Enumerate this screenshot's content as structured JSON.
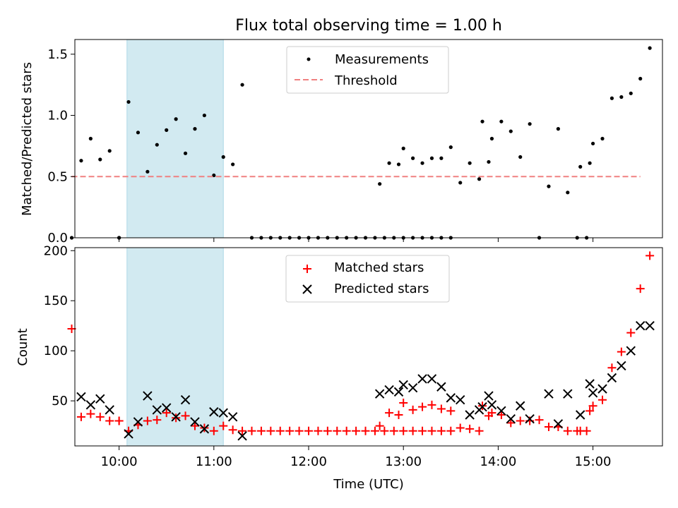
{
  "figure": {
    "title": "Flux total observing time = 1.00 h"
  },
  "chart_data": [
    {
      "type": "scatter",
      "panel": "top",
      "ylabel": "Matched/Predicted stars",
      "xlabel": "",
      "xlim": [
        "09:32",
        "15:44"
      ],
      "ylim": [
        0,
        1.62
      ],
      "yticks": [
        "0.0",
        "0.5",
        "1.0",
        "1.5"
      ],
      "highlight_span": [
        "10:05",
        "11:06"
      ],
      "highlight_color": "#add8e6",
      "legend_position": "top-center",
      "series": [
        {
          "name": "Measurements",
          "kind": "points",
          "color": "#000000",
          "points": [
            [
              "09:30",
              0.0
            ],
            [
              "09:36",
              0.63
            ],
            [
              "09:42",
              0.81
            ],
            [
              "09:48",
              0.64
            ],
            [
              "09:54",
              0.71
            ],
            [
              "10:00",
              0.0
            ],
            [
              "10:00",
              0.0
            ],
            [
              "10:06",
              1.11
            ],
            [
              "10:12",
              0.86
            ],
            [
              "10:18",
              0.54
            ],
            [
              "10:24",
              0.76
            ],
            [
              "10:30",
              0.88
            ],
            [
              "10:36",
              0.97
            ],
            [
              "10:42",
              0.69
            ],
            [
              "10:48",
              0.89
            ],
            [
              "10:54",
              1.0
            ],
            [
              "11:00",
              0.51
            ],
            [
              "11:06",
              0.66
            ],
            [
              "11:12",
              0.6
            ],
            [
              "11:18",
              1.25
            ],
            [
              "11:24",
              0.0
            ],
            [
              "11:30",
              0.0
            ],
            [
              "11:36",
              0.0
            ],
            [
              "11:42",
              0.0
            ],
            [
              "11:48",
              0.0
            ],
            [
              "11:54",
              0.0
            ],
            [
              "12:00",
              0.0
            ],
            [
              "12:06",
              0.0
            ],
            [
              "12:12",
              0.0
            ],
            [
              "12:18",
              0.0
            ],
            [
              "12:24",
              0.0
            ],
            [
              "12:30",
              0.0
            ],
            [
              "12:36",
              0.0
            ],
            [
              "12:42",
              0.0
            ],
            [
              "12:48",
              0.0
            ],
            [
              "12:54",
              0.0
            ],
            [
              "13:00",
              0.0
            ],
            [
              "13:06",
              0.0
            ],
            [
              "13:12",
              0.0
            ],
            [
              "13:18",
              0.0
            ],
            [
              "13:24",
              0.0
            ],
            [
              "13:30",
              0.0
            ],
            [
              "12:45",
              0.44
            ],
            [
              "12:51",
              0.61
            ],
            [
              "12:57",
              0.6
            ],
            [
              "13:00",
              0.73
            ],
            [
              "13:06",
              0.65
            ],
            [
              "13:12",
              0.61
            ],
            [
              "13:18",
              0.65
            ],
            [
              "13:24",
              0.65
            ],
            [
              "13:30",
              0.74
            ],
            [
              "13:36",
              0.45
            ],
            [
              "13:42",
              0.61
            ],
            [
              "13:48",
              0.48
            ],
            [
              "13:54",
              0.62
            ],
            [
              "13:50",
              0.95
            ],
            [
              "13:56",
              0.81
            ],
            [
              "14:02",
              0.95
            ],
            [
              "14:08",
              0.87
            ],
            [
              "14:14",
              0.66
            ],
            [
              "14:20",
              0.93
            ],
            [
              "14:26",
              0.0
            ],
            [
              "14:32",
              0.42
            ],
            [
              "14:38",
              0.89
            ],
            [
              "14:44",
              0.37
            ],
            [
              "14:50",
              0.0
            ],
            [
              "14:56",
              0.0
            ],
            [
              "14:52",
              0.58
            ],
            [
              "14:58",
              0.61
            ],
            [
              "15:00",
              0.77
            ],
            [
              "15:06",
              0.81
            ],
            [
              "15:12",
              1.14
            ],
            [
              "15:18",
              1.15
            ],
            [
              "15:24",
              1.18
            ],
            [
              "15:30",
              1.3
            ],
            [
              "15:36",
              1.55
            ]
          ]
        },
        {
          "name": "Threshold",
          "kind": "dashed-line",
          "color": "#f08080",
          "x": [
            "09:30",
            "15:30"
          ],
          "y": [
            0.5,
            0.5
          ]
        }
      ]
    },
    {
      "type": "scatter",
      "panel": "bottom",
      "ylabel": "Count",
      "xlabel": "Time (UTC)",
      "xlim": [
        "09:32",
        "15:44"
      ],
      "ylim": [
        5,
        203
      ],
      "yticks": [
        "50",
        "100",
        "150",
        "200"
      ],
      "xticks": [
        "10:00",
        "11:00",
        "12:00",
        "13:00",
        "14:00",
        "15:00"
      ],
      "highlight_span": [
        "10:05",
        "11:06"
      ],
      "highlight_color": "#add8e6",
      "legend_position": "top-center",
      "series": [
        {
          "name": "Matched stars",
          "marker": "plus",
          "color": "#ff0000",
          "points": [
            [
              "09:30",
              122
            ],
            [
              "09:36",
              34
            ],
            [
              "09:42",
              37
            ],
            [
              "09:48",
              34
            ],
            [
              "09:54",
              30
            ],
            [
              "10:00",
              30
            ],
            [
              "10:00",
              30
            ],
            [
              "10:06",
              20
            ],
            [
              "10:12",
              26
            ],
            [
              "10:18",
              30
            ],
            [
              "10:24",
              31
            ],
            [
              "10:30",
              38
            ],
            [
              "10:36",
              33
            ],
            [
              "10:42",
              35
            ],
            [
              "10:48",
              25
            ],
            [
              "10:54",
              23
            ],
            [
              "11:00",
              20
            ],
            [
              "11:06",
              25
            ],
            [
              "11:12",
              21
            ],
            [
              "11:18",
              20
            ],
            [
              "11:24",
              20
            ],
            [
              "11:30",
              20
            ],
            [
              "11:36",
              20
            ],
            [
              "11:42",
              20
            ],
            [
              "11:48",
              20
            ],
            [
              "11:54",
              20
            ],
            [
              "12:00",
              20
            ],
            [
              "12:06",
              20
            ],
            [
              "12:12",
              20
            ],
            [
              "12:18",
              20
            ],
            [
              "12:24",
              20
            ],
            [
              "12:30",
              20
            ],
            [
              "12:36",
              20
            ],
            [
              "12:42",
              20
            ],
            [
              "12:48",
              20
            ],
            [
              "12:54",
              20
            ],
            [
              "13:00",
              20
            ],
            [
              "13:06",
              20
            ],
            [
              "13:12",
              20
            ],
            [
              "13:18",
              20
            ],
            [
              "13:24",
              20
            ],
            [
              "13:30",
              20
            ],
            [
              "12:45",
              25
            ],
            [
              "12:51",
              38
            ],
            [
              "12:57",
              36
            ],
            [
              "13:00",
              48
            ],
            [
              "13:06",
              41
            ],
            [
              "13:12",
              44
            ],
            [
              "13:18",
              46
            ],
            [
              "13:24",
              42
            ],
            [
              "13:30",
              40
            ],
            [
              "13:36",
              23
            ],
            [
              "13:42",
              22
            ],
            [
              "13:48",
              20
            ],
            [
              "13:54",
              35
            ],
            [
              "13:50",
              45
            ],
            [
              "13:56",
              38
            ],
            [
              "14:02",
              36
            ],
            [
              "14:08",
              28
            ],
            [
              "14:14",
              30
            ],
            [
              "14:20",
              30
            ],
            [
              "14:26",
              31
            ],
            [
              "14:32",
              24
            ],
            [
              "14:38",
              24
            ],
            [
              "14:44",
              20
            ],
            [
              "14:50",
              20
            ],
            [
              "14:56",
              20
            ],
            [
              "14:52",
              20
            ],
            [
              "14:58",
              40
            ],
            [
              "15:00",
              45
            ],
            [
              "15:06",
              51
            ],
            [
              "15:12",
              83
            ],
            [
              "15:18",
              99
            ],
            [
              "15:24",
              118
            ],
            [
              "15:30",
              162
            ],
            [
              "15:36",
              195
            ]
          ]
        },
        {
          "name": "Predicted stars",
          "marker": "x",
          "color": "#000000",
          "points": [
            [
              "09:36",
              54
            ],
            [
              "09:42",
              46
            ],
            [
              "09:48",
              52
            ],
            [
              "09:54",
              41
            ],
            [
              "10:06",
              17
            ],
            [
              "10:12",
              29
            ],
            [
              "10:18",
              55
            ],
            [
              "10:24",
              41
            ],
            [
              "10:30",
              43
            ],
            [
              "10:36",
              34
            ],
            [
              "10:42",
              51
            ],
            [
              "10:48",
              29
            ],
            [
              "10:54",
              22
            ],
            [
              "11:00",
              39
            ],
            [
              "11:06",
              38
            ],
            [
              "11:12",
              34
            ],
            [
              "11:18",
              15
            ],
            [
              "12:45",
              57
            ],
            [
              "12:51",
              61
            ],
            [
              "12:57",
              59
            ],
            [
              "13:00",
              66
            ],
            [
              "13:06",
              63
            ],
            [
              "13:12",
              72
            ],
            [
              "13:18",
              72
            ],
            [
              "13:24",
              64
            ],
            [
              "13:30",
              53
            ],
            [
              "13:36",
              51
            ],
            [
              "13:42",
              36
            ],
            [
              "13:48",
              41
            ],
            [
              "13:54",
              55
            ],
            [
              "13:50",
              44
            ],
            [
              "13:56",
              46
            ],
            [
              "14:02",
              40
            ],
            [
              "14:08",
              32
            ],
            [
              "14:14",
              45
            ],
            [
              "14:20",
              32
            ],
            [
              "14:32",
              57
            ],
            [
              "14:38",
              27
            ],
            [
              "14:44",
              57
            ],
            [
              "14:52",
              36
            ],
            [
              "14:58",
              67
            ],
            [
              "15:00",
              58
            ],
            [
              "15:06",
              62
            ],
            [
              "15:12",
              73
            ],
            [
              "15:18",
              85
            ],
            [
              "15:24",
              100
            ],
            [
              "15:30",
              125
            ],
            [
              "15:36",
              125
            ]
          ]
        }
      ]
    }
  ]
}
